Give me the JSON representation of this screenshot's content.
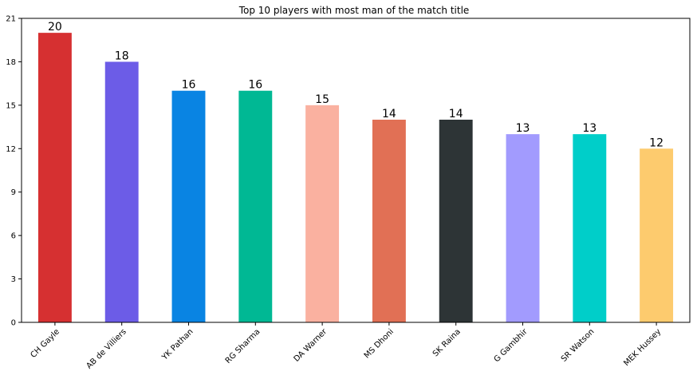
{
  "chart_data": {
    "type": "bar",
    "title": "Top 10 players with most man of the match title",
    "xlabel": "",
    "ylabel": "",
    "categories": [
      "CH Gayle",
      "AB de Villiers",
      "YK Pathan",
      "RG Sharma",
      "DA Warner",
      "MS Dhoni",
      "SK Raina",
      "G Gambhir",
      "SR Watson",
      "MEK Hussey"
    ],
    "values": [
      20,
      18,
      16,
      16,
      15,
      14,
      14,
      13,
      13,
      12
    ],
    "colors": [
      "#d63031",
      "#6c5ce7",
      "#0984e3",
      "#00b894",
      "#fab1a0",
      "#e17055",
      "#2d3436",
      "#a29bfe",
      "#00cec9",
      "#fdcb6e"
    ],
    "ylim": [
      0,
      21
    ],
    "yticks": [
      0,
      3,
      6,
      9,
      12,
      15,
      18,
      21
    ],
    "data_labels": true,
    "grid": false,
    "legend": "none"
  }
}
